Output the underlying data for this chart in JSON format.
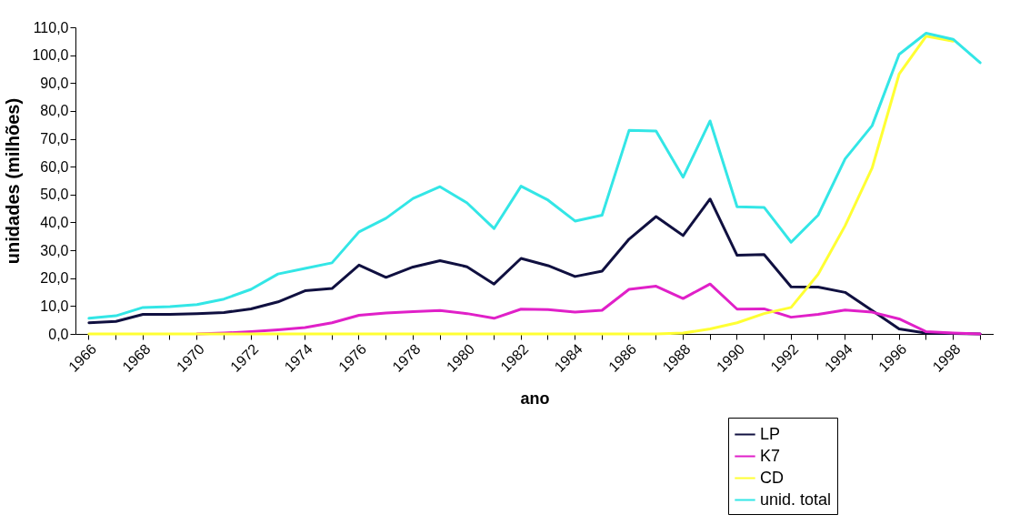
{
  "chart_data": {
    "type": "line",
    "xlabel": "ano",
    "ylabel": "unidades (milhões)",
    "categories": [
      "1966",
      null,
      "1968",
      null,
      "1970",
      null,
      "1972",
      null,
      "1974",
      null,
      "1976",
      null,
      "1978",
      null,
      "1980",
      null,
      "1982",
      null,
      "1984",
      null,
      "1986",
      null,
      "1988",
      null,
      "1990",
      null,
      "1992",
      null,
      "1994",
      null,
      "1996",
      null,
      "1998",
      null
    ],
    "series": [
      {
        "name": "LP",
        "color": "#101040",
        "values": [
          4,
          4.5,
          7,
          7,
          7.3,
          7.7,
          9,
          11.5,
          15.5,
          16.3,
          24.7,
          20.3,
          24,
          26.3,
          24.1,
          17.9,
          27.1,
          24.5,
          20.6,
          22.5,
          34,
          42.1,
          35.3,
          48.4,
          28.2,
          28.5,
          16.9,
          16.8,
          14.9,
          8.4,
          1.8,
          0.3,
          0.2,
          0
        ]
      },
      {
        "name": "K7",
        "color": "#e020c8",
        "values": [
          null,
          null,
          null,
          null,
          0,
          0.3,
          0.8,
          1.5,
          2.3,
          4,
          6.7,
          7.5,
          8,
          8.4,
          7.3,
          5.6,
          8.9,
          8.7,
          7.8,
          8.5,
          16,
          17.1,
          12.7,
          17.9,
          8.9,
          9,
          6,
          7,
          8.6,
          7.8,
          5.4,
          0.8,
          0.3,
          0
        ]
      },
      {
        "name": "CD",
        "color": "#ffff33",
        "values": [
          0,
          0,
          0,
          0,
          0,
          0,
          0,
          0,
          0,
          0,
          0,
          0,
          0,
          0,
          0,
          0,
          0,
          0,
          0,
          0,
          0,
          0,
          0.3,
          1.8,
          4,
          7.3,
          9.5,
          21.4,
          38.8,
          59.5,
          93.2,
          106.8,
          105,
          null
        ]
      },
      {
        "name": "unid. total",
        "color": "#33e6e6",
        "values": [
          5.6,
          6.5,
          9.5,
          9.8,
          10.5,
          12.5,
          16,
          21.5,
          23.5,
          25.5,
          36.6,
          41.5,
          48.6,
          52.8,
          47,
          37.8,
          53,
          48,
          40.5,
          42.6,
          73,
          72.8,
          56.2,
          76.4,
          45.6,
          45.4,
          32.9,
          42.6,
          62.8,
          74.7,
          100.3,
          107.9,
          105.7,
          97.3
        ]
      }
    ],
    "ylim": [
      0,
      110
    ],
    "yticks": [
      {
        "value": 0,
        "label": "0,0"
      },
      {
        "value": 10,
        "label": "10,0"
      },
      {
        "value": 20,
        "label": "20,0"
      },
      {
        "value": 30,
        "label": "30,0"
      },
      {
        "value": 40,
        "label": "40,0"
      },
      {
        "value": 50,
        "label": "50,0"
      },
      {
        "value": 60,
        "label": "60,0"
      },
      {
        "value": 70,
        "label": "70,0"
      },
      {
        "value": 80,
        "label": "80,0"
      },
      {
        "value": 90,
        "label": "90,0"
      },
      {
        "value": 100,
        "label": "100,0"
      },
      {
        "value": 110,
        "label": "110,0"
      }
    ],
    "grid": false,
    "legend": "bottom right",
    "marker": "none",
    "line_style": "solid"
  }
}
